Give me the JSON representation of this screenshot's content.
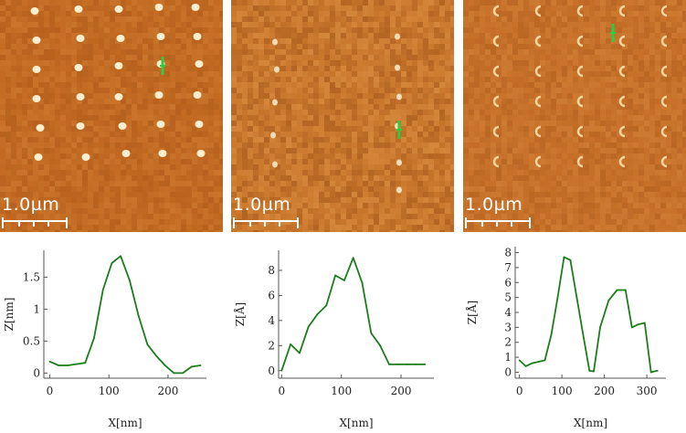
{
  "images": [
    {
      "scale_label": "1.0µm",
      "marker_color": "#2ecc40"
    },
    {
      "scale_label": "1.0µm",
      "marker_color": "#2ecc40"
    },
    {
      "scale_label": "1.0µm",
      "marker_color": "#2ecc40"
    }
  ],
  "colors": {
    "line": "#1b7d1b",
    "axis": "#555555",
    "afm_base": "#c26a22"
  },
  "chart_data": [
    {
      "type": "line",
      "xlabel": "X[nm]",
      "ylabel": "Z[nm]",
      "xlim": [
        -10,
        265
      ],
      "ylim": [
        -0.08,
        1.92
      ],
      "xticks": [
        0,
        100,
        200
      ],
      "yticks": [
        0,
        0.5,
        1,
        1.5
      ],
      "ytick_labels": [
        "0",
        "0.5",
        "1",
        "1.5"
      ],
      "x": [
        0,
        15,
        30,
        45,
        60,
        75,
        90,
        105,
        120,
        135,
        150,
        165,
        180,
        195,
        210,
        225,
        240,
        255
      ],
      "y": [
        0.18,
        0.12,
        0.12,
        0.14,
        0.16,
        0.55,
        1.3,
        1.72,
        1.83,
        1.45,
        0.9,
        0.45,
        0.27,
        0.12,
        0.0,
        0.0,
        0.1,
        0.12
      ]
    },
    {
      "type": "line",
      "xlabel": "X[nm]",
      "ylabel": "Z[Å]",
      "xlim": [
        -5,
        255
      ],
      "ylim": [
        -0.6,
        9.6
      ],
      "xticks": [
        0,
        100,
        200
      ],
      "yticks": [
        0,
        2,
        4,
        6,
        8
      ],
      "ytick_labels": [
        "0",
        "2",
        "4",
        "6",
        "8"
      ],
      "x": [
        0,
        15,
        30,
        45,
        60,
        75,
        90,
        105,
        120,
        135,
        150,
        165,
        180,
        195,
        210,
        225,
        240
      ],
      "y": [
        0,
        2.1,
        1.4,
        3.5,
        4.5,
        5.2,
        7.6,
        7.2,
        9.0,
        7.0,
        3.0,
        2.0,
        0.5,
        0.5,
        0.5,
        0.5,
        0.5
      ]
    },
    {
      "type": "line",
      "xlabel": "X[nm]",
      "ylabel": "Z[Å]",
      "xlim": [
        -10,
        345
      ],
      "ylim": [
        -0.4,
        8.4
      ],
      "xticks": [
        0,
        100,
        200,
        300
      ],
      "yticks": [
        0,
        1,
        2,
        3,
        4,
        5,
        6,
        7,
        8
      ],
      "ytick_labels": [
        "0",
        "1",
        "2",
        "3",
        "4",
        "5",
        "6",
        "7",
        "8"
      ],
      "x": [
        0,
        15,
        30,
        45,
        60,
        75,
        90,
        105,
        120,
        135,
        150,
        165,
        175,
        190,
        210,
        230,
        250,
        265,
        280,
        295,
        310,
        325
      ],
      "y": [
        0.8,
        0.4,
        0.6,
        0.7,
        0.8,
        2.5,
        5.0,
        7.7,
        7.5,
        5.0,
        2.5,
        0.1,
        0.05,
        3.0,
        4.8,
        5.5,
        5.5,
        3.0,
        3.2,
        3.3,
        0.0,
        0.1
      ]
    }
  ]
}
